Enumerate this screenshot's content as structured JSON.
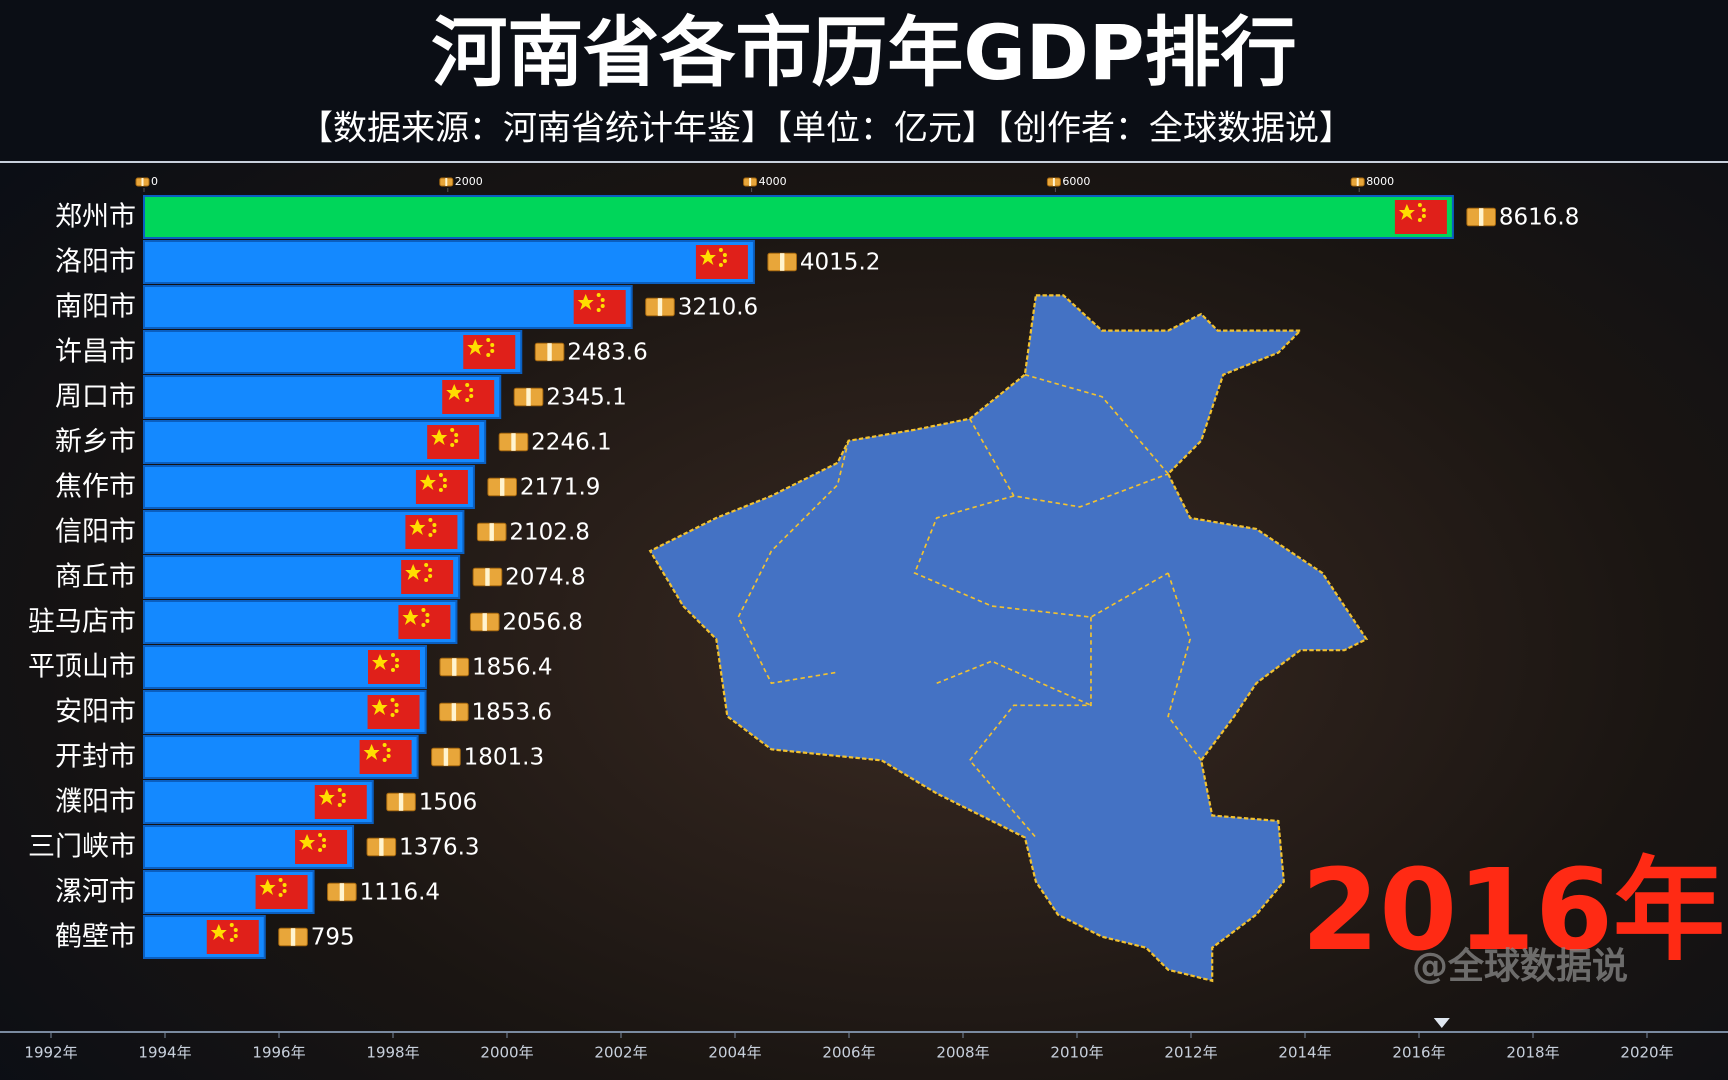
{
  "chart_data": {
    "type": "hbar",
    "title": "河南省各市历年GDP排行",
    "subtitle": "【数据来源：河南省统计年鉴】【单位：亿元】【创作者：全球数据说】",
    "categories": [
      "郑州市",
      "洛阳市",
      "南阳市",
      "许昌市",
      "周口市",
      "新乡市",
      "焦作市",
      "信阳市",
      "商丘市",
      "驻马店市",
      "平顶山市",
      "安阳市",
      "开封市",
      "濮阳市",
      "三门峡市",
      "漯河市",
      "鹤壁市"
    ],
    "values": [
      8616.8,
      4015.2,
      3210.6,
      2483.6,
      2345.1,
      2246.1,
      2171.9,
      2102.8,
      2074.8,
      2056.8,
      1856.4,
      1853.6,
      1801.3,
      1506,
      1376.3,
      1116.4,
      795
    ],
    "colors": [
      "#00d65a",
      "#1489ff",
      "#1489ff",
      "#1489ff",
      "#1489ff",
      "#1489ff",
      "#1489ff",
      "#1489ff",
      "#1489ff",
      "#1489ff",
      "#1489ff",
      "#1489ff",
      "#1489ff",
      "#1489ff",
      "#1489ff",
      "#1489ff",
      "#1489ff"
    ],
    "xlim": [
      0,
      10000
    ],
    "xticks": [
      0,
      2000,
      4000,
      6000,
      8000
    ],
    "timeline": [
      "1992年",
      "1994年",
      "1996年",
      "1998年",
      "2000年",
      "2002年",
      "2004年",
      "2006年",
      "2008年",
      "2010年",
      "2012年",
      "2014年",
      "2016年",
      "2018年",
      "2020年"
    ],
    "current_year": "2016年",
    "watermark": "@全球数据说"
  }
}
